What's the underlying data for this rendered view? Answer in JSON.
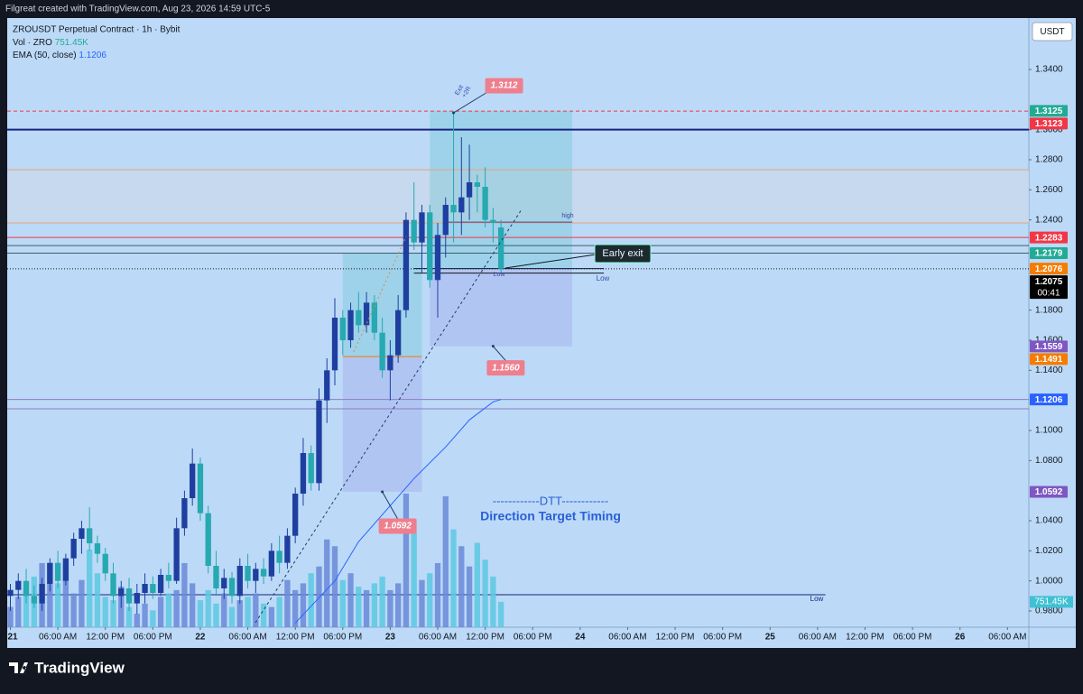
{
  "header": {
    "attribution": "Filgreat created with TradingView.com, Aug 23, 2026 14:59 UTC-5",
    "logo": "TradingView"
  },
  "chart_data": {
    "type": "candlestick",
    "title": "ZROUSDT Perpetual Contract · 1h · Bybit",
    "volume_name": "Vol · ZRO",
    "ema_name": "EMA (50, close)",
    "currency": "USDT",
    "up_color": "#1e3fa0",
    "down_color": "#26a9b0",
    "volume_up_color": "#6a88d8",
    "volume_down_color": "#5cc8e2",
    "xlim": [
      -0.4,
      128.7
    ],
    "ylim": [
      0.9692,
      1.3742
    ],
    "volume_lim": [
      0,
      5000000
    ],
    "xticks": [
      {
        "value": 0,
        "label": "21"
      },
      {
        "value": 6,
        "label": "06:00 AM"
      },
      {
        "value": 12,
        "label": "12:00 PM"
      },
      {
        "value": 18,
        "label": "06:00 PM"
      },
      {
        "value": 24,
        "label": "22"
      },
      {
        "value": 30,
        "label": "06:00 AM"
      },
      {
        "value": 36,
        "label": "12:00 PM"
      },
      {
        "value": 42,
        "label": "06:00 PM"
      },
      {
        "value": 48,
        "label": "23"
      },
      {
        "value": 54,
        "label": "06:00 AM"
      },
      {
        "value": 60,
        "label": "12:00 PM"
      },
      {
        "value": 66,
        "label": "06:00 PM"
      },
      {
        "value": 72,
        "label": "24"
      },
      {
        "value": 78,
        "label": "06:00 AM"
      },
      {
        "value": 84,
        "label": "12:00 PM"
      },
      {
        "value": 90,
        "label": "06:00 PM"
      },
      {
        "value": 96,
        "label": "25"
      },
      {
        "value": 102,
        "label": "06:00 AM"
      },
      {
        "value": 108,
        "label": "12:00 PM"
      },
      {
        "value": 114,
        "label": "06:00 PM"
      },
      {
        "value": 120,
        "label": "26"
      },
      {
        "value": 126,
        "label": "06:00 AM"
      }
    ],
    "yticks": [
      {
        "value": 1.34,
        "label": "1.3400"
      },
      {
        "value": 1.3,
        "label": "1.3000"
      },
      {
        "value": 1.28,
        "label": "1.2800"
      },
      {
        "value": 1.26,
        "label": "1.2600"
      },
      {
        "value": 1.24,
        "label": "1.2400"
      },
      {
        "value": 1.18,
        "label": "1.1800"
      },
      {
        "value": 1.16,
        "label": "1.1600"
      },
      {
        "value": 1.14,
        "label": "1.1400"
      },
      {
        "value": 1.1,
        "label": "1.1000"
      },
      {
        "value": 1.08,
        "label": "1.0800"
      },
      {
        "value": 1.04,
        "label": "1.0400"
      },
      {
        "value": 1.02,
        "label": "1.0200"
      },
      {
        "value": 1,
        "label": "1.0000"
      },
      {
        "value": 0.98,
        "label": "0.9800"
      }
    ],
    "x": [
      0,
      1,
      2,
      3,
      4,
      5,
      6,
      7,
      8,
      9,
      10,
      11,
      12,
      13,
      14,
      15,
      16,
      17,
      18,
      19,
      20,
      21,
      22,
      23,
      24,
      25,
      26,
      27,
      28,
      29,
      30,
      31,
      32,
      33,
      34,
      35,
      36,
      37,
      38,
      39,
      40,
      41,
      42,
      43,
      44,
      45,
      46,
      47,
      48,
      49,
      50,
      51,
      52,
      53,
      54,
      55,
      56,
      57,
      58,
      59,
      60,
      61,
      62
    ],
    "open": [
      0.99,
      0.994,
      1.0,
      0.99,
      0.985,
      0.998,
      1.012,
      1.0,
      1.015,
      1.028,
      1.035,
      1.025,
      1.018,
      1.005,
      0.99,
      0.995,
      0.985,
      0.992,
      0.998,
      0.992,
      1.004,
      1.0,
      1.035,
      1.055,
      1.078,
      1.045,
      1.01,
      0.995,
      1.002,
      0.99,
      1.01,
      1.0,
      1.008,
      1.003,
      1.02,
      1.012,
      1.03,
      1.058,
      1.085,
      1.065,
      1.12,
      1.14,
      1.175,
      1.16,
      1.18,
      1.17,
      1.185,
      1.165,
      1.14,
      1.15,
      1.18,
      1.24,
      1.225,
      1.245,
      1.2,
      1.23,
      1.25,
      1.245,
      1.255,
      1.265,
      1.262,
      1.24,
      1.235
    ],
    "high": [
      0.998,
      1.005,
      1.008,
      0.997,
      1.002,
      1.015,
      1.02,
      1.018,
      1.032,
      1.04,
      1.049,
      1.03,
      1.022,
      1.012,
      1.0,
      1.002,
      0.998,
      1.005,
      1.003,
      1.008,
      1.012,
      1.042,
      1.06,
      1.088,
      1.082,
      1.05,
      1.02,
      1.008,
      1.006,
      1.015,
      1.018,
      1.012,
      1.015,
      1.025,
      1.03,
      1.035,
      1.062,
      1.095,
      1.09,
      1.128,
      1.148,
      1.188,
      1.18,
      1.185,
      1.192,
      1.192,
      1.19,
      1.175,
      1.16,
      1.19,
      1.245,
      1.265,
      1.25,
      1.25,
      1.238,
      1.255,
      1.3112,
      1.295,
      1.29,
      1.27,
      1.275,
      1.248,
      1.24
    ],
    "low": [
      0.98,
      0.988,
      0.985,
      0.982,
      0.98,
      0.993,
      0.995,
      0.997,
      1.01,
      1.018,
      1.02,
      1.012,
      1.0,
      0.985,
      0.982,
      0.98,
      0.978,
      0.985,
      0.988,
      0.99,
      0.995,
      0.998,
      1.03,
      1.05,
      1.04,
      1.005,
      0.99,
      0.988,
      0.985,
      0.985,
      0.995,
      0.992,
      0.998,
      1.0,
      1.005,
      1.008,
      1.025,
      1.05,
      1.06,
      1.06,
      1.105,
      1.13,
      1.15,
      1.155,
      1.165,
      1.165,
      1.16,
      1.135,
      1.12,
      1.145,
      1.175,
      1.22,
      1.205,
      1.195,
      1.175,
      1.215,
      1.225,
      1.23,
      1.24,
      1.245,
      1.235,
      1.225,
      1.205
    ],
    "close": [
      0.994,
      1.0,
      0.99,
      0.985,
      0.998,
      1.012,
      1.0,
      1.015,
      1.028,
      1.035,
      1.025,
      1.018,
      1.005,
      0.99,
      0.995,
      0.985,
      0.992,
      0.998,
      0.992,
      1.004,
      1.0,
      1.035,
      1.055,
      1.078,
      1.045,
      1.01,
      0.995,
      1.002,
      0.99,
      1.01,
      1.0,
      1.008,
      1.003,
      1.02,
      1.012,
      1.03,
      1.058,
      1.085,
      1.065,
      1.12,
      1.14,
      1.175,
      1.16,
      1.18,
      1.17,
      1.185,
      1.165,
      1.14,
      1.15,
      1.18,
      1.24,
      1.225,
      1.245,
      1.2,
      1.23,
      1.25,
      1.245,
      1.255,
      1.265,
      1.262,
      1.24,
      1.238,
      1.2075
    ],
    "volume": [
      600000,
      900000,
      1200000,
      1500000,
      1900000,
      1900000,
      1300000,
      1850000,
      1000000,
      1400000,
      2300000,
      1600000,
      900000,
      800000,
      1200000,
      600000,
      400000,
      700000,
      500000,
      900000,
      1000000,
      1100000,
      1900000,
      1300000,
      800000,
      1100000,
      700000,
      1000000,
      600000,
      800000,
      900000,
      1000000,
      700000,
      600000,
      900000,
      1400000,
      1100000,
      1300000,
      1600000,
      1800000,
      2600000,
      2400000,
      1400000,
      1600000,
      1200000,
      1100000,
      1300000,
      1500000,
      1100000,
      1300000,
      3960000,
      2800000,
      1400000,
      1600000,
      1900000,
      3880000,
      2900000,
      2400000,
      1800000,
      2500000,
      2000000,
      1500000,
      751450
    ],
    "volume_marker": {
      "value": 751450,
      "label": "751.45K",
      "color": "#3fc1d3"
    },
    "ema": {
      "color": "#2962ff",
      "x": [
        36,
        41,
        44,
        48,
        51,
        55,
        58,
        61,
        62
      ],
      "values": [
        0.972,
        1.0,
        1.026,
        1.05,
        1.068,
        1.089,
        1.107,
        1.119,
        1.1206
      ]
    },
    "zone": {
      "top": 1.2733,
      "bottom": 1.238,
      "color": "#c8d8ec"
    },
    "boxes": [
      {
        "from": 42,
        "to": 52,
        "top": 1.2179,
        "entry": 1.1491,
        "bottom": 1.0592
      },
      {
        "from": 53,
        "to": 71,
        "top": 1.3125,
        "entry": 1.2076,
        "bottom": 1.1559
      }
    ],
    "levels": [
      {
        "value": 1.3123,
        "color": "#f23645",
        "style": "dashed"
      },
      {
        "value": 1.3,
        "color": "#1a237e",
        "width": 2
      },
      {
        "value": 1.2733,
        "color": "#e8a27a"
      },
      {
        "value": 1.238,
        "color": "#e8a27a"
      },
      {
        "value": 1.2283,
        "color": "#f23645"
      },
      {
        "value": 1.2229,
        "color": "#455a64"
      },
      {
        "value": 1.2179,
        "color": "#455a64"
      },
      {
        "value": 1.2075,
        "color": "#131722",
        "style": "dotted"
      },
      {
        "value": 1.1206,
        "color": "#8e7cc3"
      },
      {
        "value": 1.1144,
        "color": "#8e7cc3"
      },
      {
        "value": 0.9908,
        "color": "#1a237e",
        "to": 103
      },
      {
        "value": 1.2076,
        "color": "#131722",
        "from": 51,
        "to": 75
      },
      {
        "value": 1.2046,
        "color": "#131722",
        "from": 51,
        "to": 75
      },
      {
        "value": 1.2385,
        "color": "#3949ab",
        "from": 55,
        "to": 71
      },
      {
        "value": 1.1491,
        "color": "#f57c00",
        "from": 42,
        "to": 52
      }
    ],
    "price_labels": [
      {
        "value": 1.3125,
        "label": "1.3125",
        "color": "#22ab94"
      },
      {
        "value": 1.3123,
        "label": "1.3123",
        "color": "#f23645"
      },
      {
        "value": 1.2283,
        "label": "1.2283",
        "color": "#f23645"
      },
      {
        "value": 1.2179,
        "label": "1.2179",
        "color": "#22ab94"
      },
      {
        "value": 1.2076,
        "label": "1.2076",
        "color": "#f57c00"
      },
      {
        "value": 1.2075,
        "label": "1.2075",
        "color": "#000000",
        "countdown": "00:41"
      },
      {
        "value": 1.1559,
        "label": "1.1559",
        "color": "#7e57c2"
      },
      {
        "value": 1.1491,
        "label": "1.1491",
        "color": "#f57c00"
      },
      {
        "value": 1.1206,
        "label": "1.1206",
        "color": "#2962ff"
      },
      {
        "value": 1.0592,
        "label": "1.0592",
        "color": "#7e57c2"
      }
    ],
    "annotations": [
      {
        "label": "1.3112",
        "value": 1.3112,
        "x": 56
      },
      {
        "label": "1.1560",
        "value": 1.156,
        "x": 61
      },
      {
        "label": "1.0592",
        "value": 1.0592,
        "x": 47
      }
    ],
    "notes": [
      "Early exit",
      "high",
      "Low",
      "Low",
      "Low",
      "Exit",
      "+2R",
      "------------DTT------------",
      "Direction Target Timing"
    ]
  }
}
